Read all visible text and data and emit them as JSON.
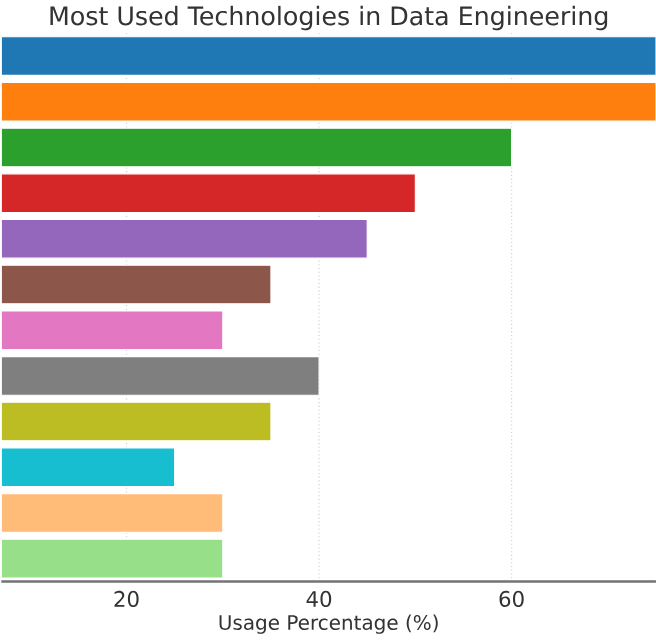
{
  "chart_data": {
    "type": "bar",
    "orientation": "horizontal",
    "title": "Most Used Technologies in Data Engineering",
    "xlabel": "Usage Percentage (%)",
    "categories": [
      null,
      null,
      null,
      null,
      null,
      null,
      null,
      null,
      null,
      null,
      null,
      null
    ],
    "values": [
      75,
      75,
      60,
      50,
      45,
      35,
      30,
      40,
      35,
      25,
      30,
      30
    ],
    "colors": [
      "#1f77b4",
      "#ff7f0e",
      "#2ca02c",
      "#d62728",
      "#9467bd",
      "#8c564b",
      "#e377c2",
      "#7f7f7f",
      "#bcbd22",
      "#17becf",
      "#ffbb78",
      "#98df8a"
    ],
    "xlim": [
      7,
      75
    ],
    "xticks": [
      20,
      40,
      60
    ],
    "grid": true
  }
}
